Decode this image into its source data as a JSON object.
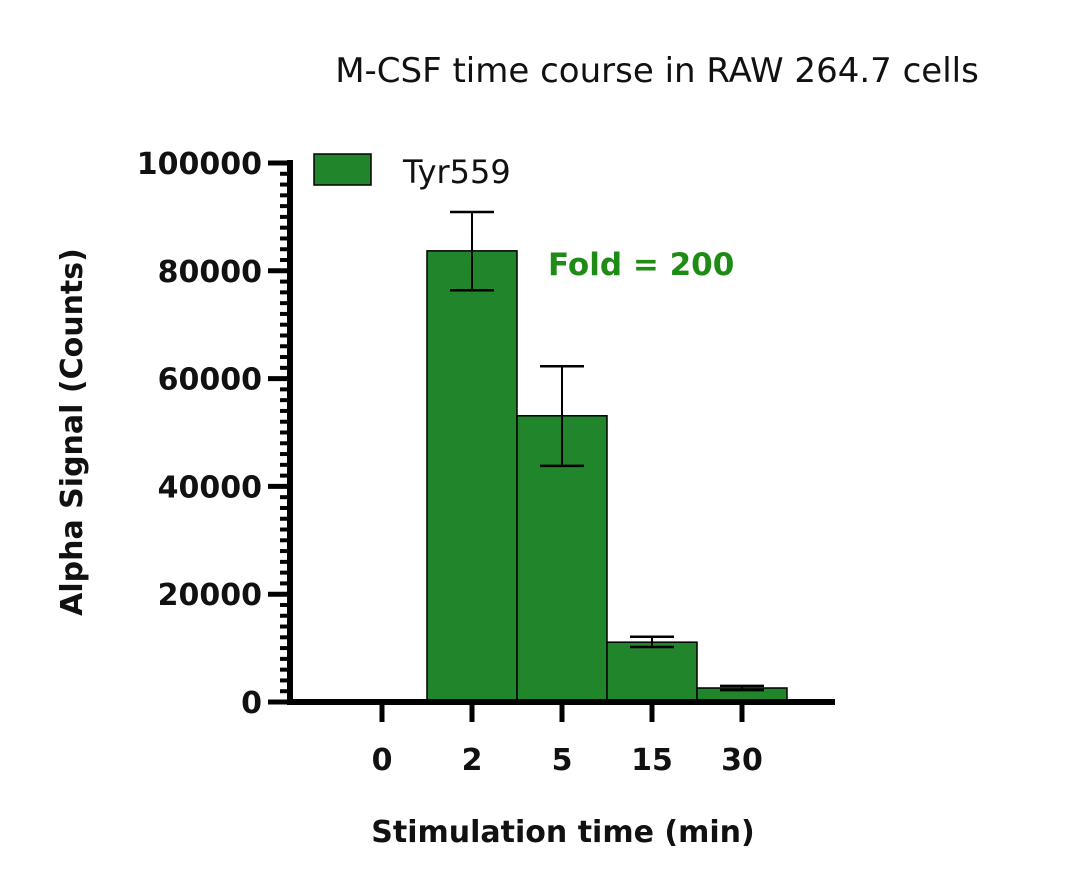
{
  "chart_data": {
    "type": "bar",
    "title": "M-CSF time course in RAW 264.7 cells",
    "xlabel": "Stimulation time (min)",
    "ylabel": "Alpha Signal (Counts)",
    "categories": [
      "0",
      "2",
      "5",
      "15",
      "30"
    ],
    "series": [
      {
        "name": "Tyr559",
        "color": "#21852B",
        "values": [
          300,
          83700,
          53100,
          11100,
          2600
        ],
        "error_low": [
          300,
          76400,
          43800,
          10200,
          2200
        ],
        "error_high": [
          300,
          90900,
          62300,
          12100,
          3000
        ]
      }
    ],
    "ylim": [
      0,
      100000
    ],
    "yticks": [
      "0",
      "20000",
      "40000",
      "60000",
      "80000",
      "100000"
    ],
    "grid": false,
    "legend": "top-left",
    "annotation": {
      "text": "Fold = 200",
      "color": "#1E8C14"
    }
  }
}
